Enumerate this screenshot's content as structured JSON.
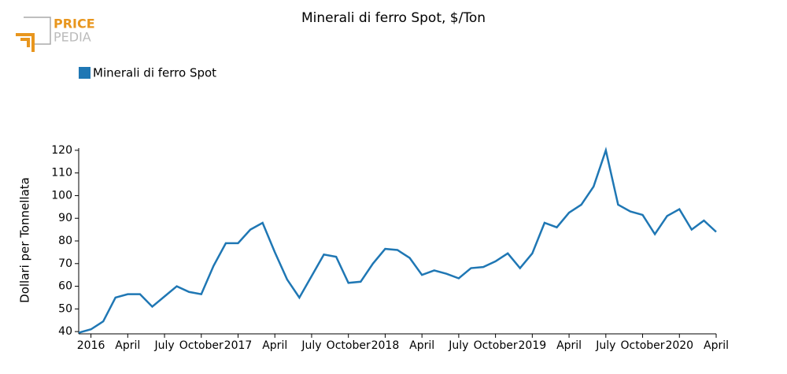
{
  "logo": {
    "top": "PRICE",
    "bottom": "PEDIA"
  },
  "chart_data": {
    "type": "line",
    "title": "Minerali di ferro Spot, $/Ton",
    "y_label": "Dollari per Tonnellata",
    "categories": [
      null,
      "2016",
      null,
      null,
      "April",
      null,
      null,
      "July",
      null,
      null,
      "October",
      null,
      null,
      "2017",
      null,
      null,
      "April",
      null,
      null,
      "July",
      null,
      null,
      "October",
      null,
      null,
      "2018",
      null,
      null,
      "April",
      null,
      null,
      "July",
      null,
      null,
      "October",
      null,
      null,
      "2019",
      null,
      null,
      "April",
      null,
      null,
      "July",
      null,
      null,
      "October",
      null,
      null,
      "2020",
      null,
      null,
      "April"
    ],
    "series": [
      {
        "name": "Minerali di ferro Spot",
        "color": "#1f77b4",
        "values": [
          39.5,
          41,
          44.5,
          55,
          56.5,
          56.5,
          51,
          55.5,
          60,
          57.5,
          56.5,
          69,
          79,
          79,
          85,
          88,
          75,
          63,
          55,
          64.5,
          74,
          73,
          61.5,
          62,
          70,
          76.5,
          76,
          72.5,
          65,
          67,
          65.5,
          63.5,
          68,
          68.5,
          71,
          74.5,
          68,
          74.5,
          88,
          86,
          92.5,
          96,
          104,
          120,
          96,
          93,
          91.5,
          83,
          91,
          94,
          85,
          89,
          84
        ]
      }
    ],
    "ylim": [
      39,
      121
    ],
    "yticks": [
      40,
      50,
      60,
      70,
      80,
      90,
      100,
      110,
      120
    ],
    "grid": false
  }
}
